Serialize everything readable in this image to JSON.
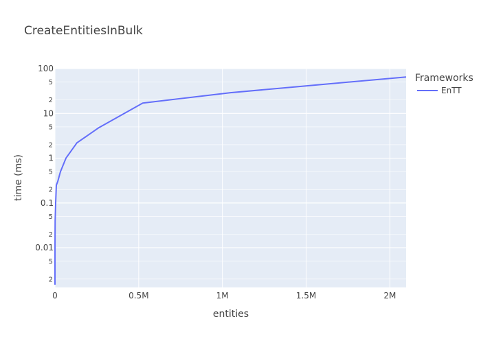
{
  "chart_data": {
    "type": "line",
    "title": "CreateEntitiesInBulk",
    "xlabel": "entities",
    "ylabel": "time (ms)",
    "xlim": [
      0,
      2097152
    ],
    "ylim_log": [
      0.0013,
      100
    ],
    "y_scale": "log",
    "grid": true,
    "legend": {
      "title": "Frameworks",
      "placement": "top-right"
    },
    "x_ticks": [
      {
        "value": 0,
        "label": "0"
      },
      {
        "value": 500000,
        "label": "0.5M"
      },
      {
        "value": 1000000,
        "label": "1M"
      },
      {
        "value": 1500000,
        "label": "1.5M"
      },
      {
        "value": 2000000,
        "label": "2M"
      }
    ],
    "y_major_ticks": [
      {
        "value": 0.01,
        "label": "0.01"
      },
      {
        "value": 0.1,
        "label": "0.1"
      },
      {
        "value": 1,
        "label": "1"
      },
      {
        "value": 10,
        "label": "10"
      },
      {
        "value": 100,
        "label": "100"
      }
    ],
    "y_minor_ticks": [
      {
        "value": 0.002,
        "label": "2"
      },
      {
        "value": 0.005,
        "label": "5"
      },
      {
        "value": 0.02,
        "label": "2"
      },
      {
        "value": 0.05,
        "label": "5"
      },
      {
        "value": 0.2,
        "label": "2"
      },
      {
        "value": 0.5,
        "label": "5"
      },
      {
        "value": 2,
        "label": "2"
      },
      {
        "value": 5,
        "label": "5"
      },
      {
        "value": 20,
        "label": "2"
      },
      {
        "value": 50,
        "label": "5"
      }
    ],
    "series": [
      {
        "name": "EnTT",
        "color": "#636efa",
        "x": [
          1,
          32,
          64,
          256,
          1024,
          4096,
          8192,
          16384,
          32768,
          65536,
          131072,
          262144,
          524288,
          1048576,
          2097152
        ],
        "y": [
          0.0015,
          0.0025,
          0.005,
          0.012,
          0.04,
          0.1,
          0.25,
          0.3,
          0.5,
          1.0,
          2.2,
          4.8,
          17,
          29,
          65
        ]
      }
    ]
  }
}
